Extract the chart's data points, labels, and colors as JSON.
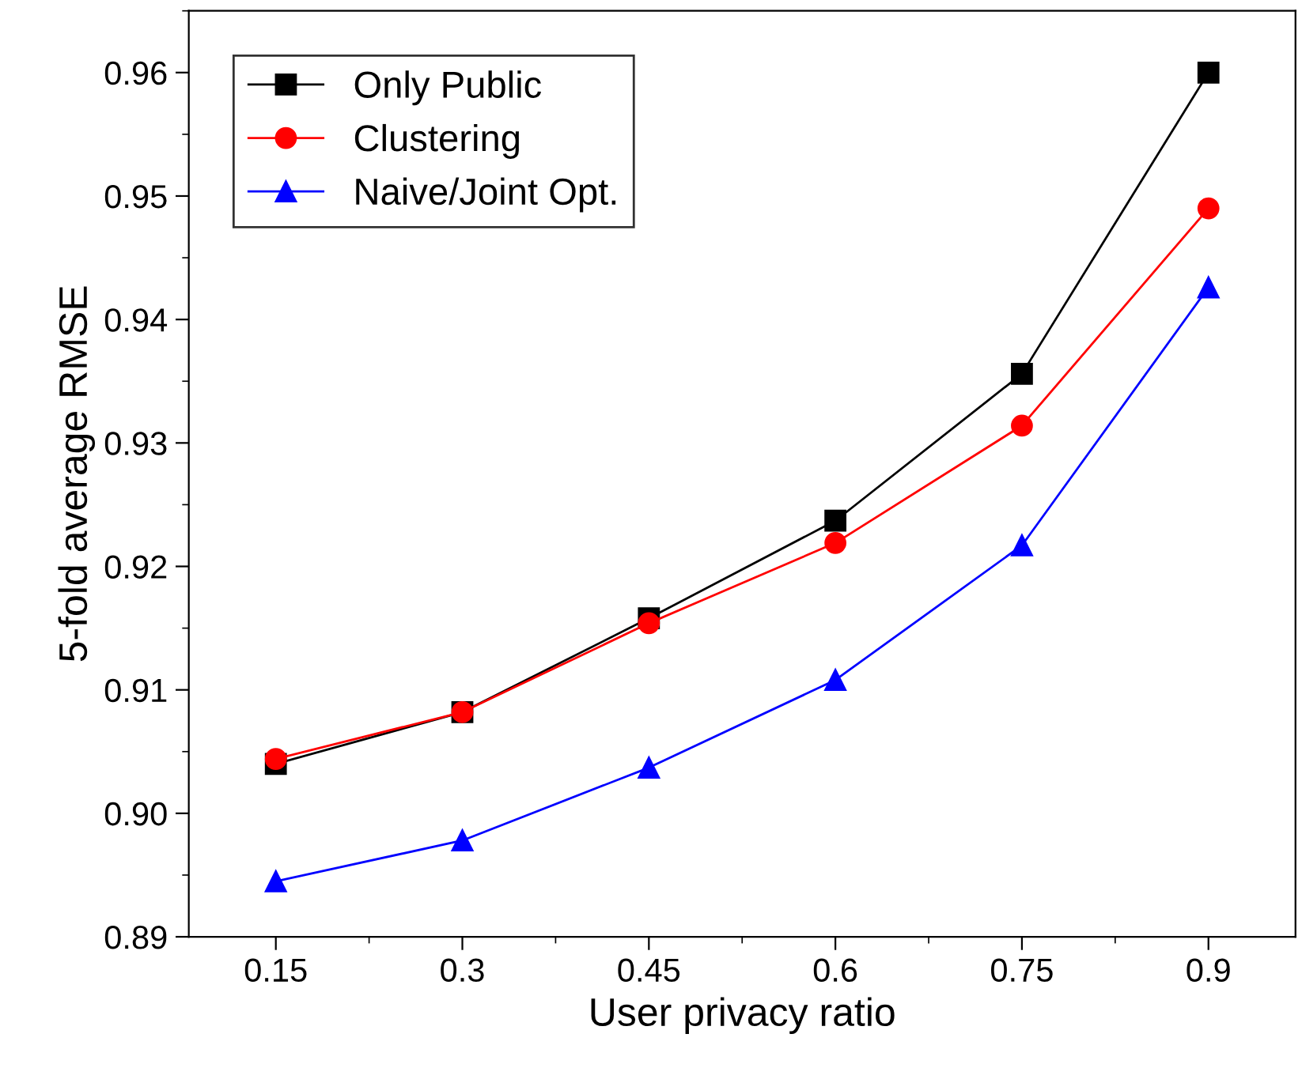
{
  "chart_data": {
    "type": "line",
    "xlabel": "User privacy ratio",
    "ylabel": "5-fold average RMSE",
    "x": [
      0.15,
      0.3,
      0.45,
      0.6,
      0.75,
      0.9
    ],
    "series": [
      {
        "name": "Only Public",
        "color": "#000000",
        "marker": "square",
        "values": [
          0.904,
          0.9082,
          0.9158,
          0.9237,
          0.9356,
          0.96
        ]
      },
      {
        "name": "Clustering",
        "color": "#ff0000",
        "marker": "circle",
        "values": [
          0.9044,
          0.9082,
          0.9154,
          0.9219,
          0.9314,
          0.949
        ]
      },
      {
        "name": "Naive/Joint Opt.",
        "color": "#0000ff",
        "marker": "triangle",
        "values": [
          0.8945,
          0.8978,
          0.9037,
          0.9108,
          0.9217,
          0.9426
        ]
      }
    ],
    "xlim": [
      0.08,
      0.97
    ],
    "ylim": [
      0.89,
      0.965
    ],
    "xticks": [
      {
        "value": 0.15,
        "label": "0.15"
      },
      {
        "value": 0.3,
        "label": "0.3"
      },
      {
        "value": 0.45,
        "label": "0.45"
      },
      {
        "value": 0.6,
        "label": "0.6"
      },
      {
        "value": 0.75,
        "label": "0.75"
      },
      {
        "value": 0.9,
        "label": "0.9"
      }
    ],
    "yticks": [
      {
        "value": 0.89,
        "label": "0.89"
      },
      {
        "value": 0.9,
        "label": "0.90"
      },
      {
        "value": 0.91,
        "label": "0.91"
      },
      {
        "value": 0.92,
        "label": "0.92"
      },
      {
        "value": 0.93,
        "label": "0.93"
      },
      {
        "value": 0.94,
        "label": "0.94"
      },
      {
        "value": 0.95,
        "label": "0.95"
      },
      {
        "value": 0.96,
        "label": "0.96"
      }
    ],
    "grid": false,
    "legend": "top left",
    "line_style": "solid"
  }
}
